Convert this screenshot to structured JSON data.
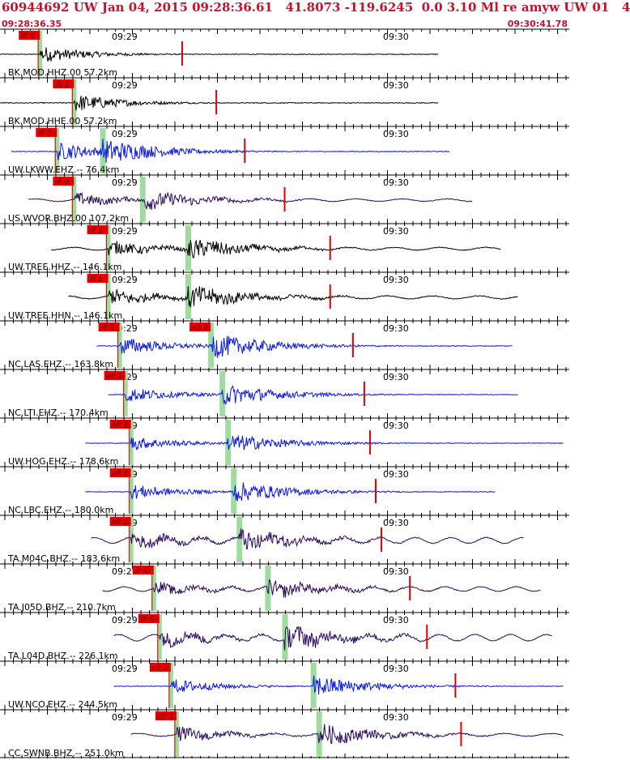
{
  "header": {
    "title": "60944692 UW Jan 04, 2015 09:28:36.61   41.8073 -119.6245  0.0 3.10 Ml re amyw UW 01   4",
    "start_time": "09:28:36.35",
    "end_time": "09:30:41.78"
  },
  "colors": {
    "title": "#c8102e",
    "pick_box": "#e00000",
    "marker_line": "#e00000",
    "green_band": "#9fdc9f",
    "trace_black": "#000000",
    "trace_blue": "#0a18e6",
    "trace_purple": "#2a0a5c"
  },
  "chart_data": {
    "type": "line",
    "title": "60944692 UW Jan 04, 2015 09:28:36.61   41.8073 -119.6245  0.0 3.10 Ml re amyw UW 01   4",
    "x_range": [
      "09:28:36.35",
      "09:30:41.78"
    ],
    "minute_marks": [
      "09:29",
      "09:30"
    ],
    "channels": [
      {
        "label": "BK.MOD.HHZ.00  57.2km",
        "color": "black",
        "start": 0.0,
        "end": 0.77,
        "p_pick": 0.07,
        "s_pick": null,
        "pick_text": "iP 0",
        "pick2_text": null,
        "amp": 0.55,
        "kind": "hf"
      },
      {
        "label": "BK.MOD.HHE.00  57.2km",
        "color": "black",
        "start": 0.0,
        "end": 0.77,
        "p_pick": 0.13,
        "s_pick": null,
        "pick_text": "iS 1",
        "pick2_text": null,
        "amp": 0.6,
        "kind": "hf"
      },
      {
        "label": "UW.LKWW.EHZ.--  76.4km",
        "color": "blue",
        "start": 0.02,
        "end": 0.79,
        "p_pick": 0.1,
        "s_pick": 0.18,
        "pick_text": "iP 0",
        "pick2_text": null,
        "amp": 0.6,
        "kind": "hf"
      },
      {
        "label": "US.WVOR.BHZ.00  107.2km",
        "color": "purple",
        "start": 0.05,
        "end": 0.83,
        "p_pick": 0.13,
        "s_pick": 0.25,
        "pick_text": "iP 0",
        "pick2_text": null,
        "amp": 0.45,
        "kind": "mix"
      },
      {
        "label": "UW.TREE.HHZ.--  146.1km",
        "color": "black",
        "start": 0.09,
        "end": 0.88,
        "p_pick": 0.19,
        "s_pick": 0.33,
        "pick_text": "iP 1",
        "pick2_text": null,
        "amp": 0.5,
        "kind": "mix"
      },
      {
        "label": "UW.TREE.HHN.--  146.1km",
        "color": "black",
        "start": 0.12,
        "end": 0.91,
        "p_pick": 0.19,
        "s_pick": 0.33,
        "pick_text": "iS 1",
        "pick2_text": null,
        "amp": 0.55,
        "kind": "mix"
      },
      {
        "label": "NC.LAS.EHZ.--  163.8km",
        "color": "blue",
        "start": 0.17,
        "end": 0.9,
        "p_pick": 0.21,
        "s_pick": 0.37,
        "pick_text": "iP 0",
        "pick2_text": "eS 2",
        "amp": 0.6,
        "kind": "hf"
      },
      {
        "label": "NC.LTI.EHZ.--  170.4km",
        "color": "blue",
        "start": 0.19,
        "end": 0.91,
        "p_pick": 0.22,
        "s_pick": 0.39,
        "pick_text": "eP 2",
        "pick2_text": null,
        "amp": 0.5,
        "kind": "hf"
      },
      {
        "label": "UW.HOG.EHZ.--  178.6km",
        "color": "blue",
        "start": 0.15,
        "end": 0.99,
        "p_pick": 0.23,
        "s_pick": 0.4,
        "pick_text": "eP 2",
        "pick2_text": null,
        "amp": 0.45,
        "kind": "hf"
      },
      {
        "label": "NC.LBC.EHZ.--  180.0km",
        "color": "blue",
        "start": 0.15,
        "end": 0.87,
        "p_pick": 0.23,
        "s_pick": 0.41,
        "pick_text": "eP 2",
        "pick2_text": null,
        "amp": 0.5,
        "kind": "hf"
      },
      {
        "label": "TA.M04C.BHZ.--  183.6km",
        "color": "purple",
        "start": 0.16,
        "end": 0.92,
        "p_pick": 0.23,
        "s_pick": 0.42,
        "pick_text": "eP 2",
        "pick2_text": null,
        "amp": 0.5,
        "kind": "lf"
      },
      {
        "label": "TA.J05D.BHZ.--  210.7km",
        "color": "purple",
        "start": 0.18,
        "end": 0.95,
        "p_pick": 0.27,
        "s_pick": 0.47,
        "pick_text": "iP 0",
        "pick2_text": null,
        "amp": 0.4,
        "kind": "lf"
      },
      {
        "label": "TA.L04D.BHZ.--  226.1km",
        "color": "purple",
        "start": 0.2,
        "end": 0.97,
        "p_pick": 0.28,
        "s_pick": 0.5,
        "pick_text": "iP 0",
        "pick2_text": null,
        "amp": 0.55,
        "kind": "lf"
      },
      {
        "label": "UW.NCO.EHZ.--  244.5km",
        "color": "blue",
        "start": 0.2,
        "end": 0.99,
        "p_pick": 0.3,
        "s_pick": 0.55,
        "pick_text": "eP 2",
        "pick2_text": null,
        "amp": 0.5,
        "kind": "hf"
      },
      {
        "label": "CC.SWNB.BHZ.--  251.0km",
        "color": "purple",
        "start": 0.23,
        "end": 0.99,
        "p_pick": 0.31,
        "s_pick": 0.56,
        "pick_text": "eP 2",
        "pick2_text": null,
        "amp": 0.5,
        "kind": "mix"
      }
    ]
  }
}
